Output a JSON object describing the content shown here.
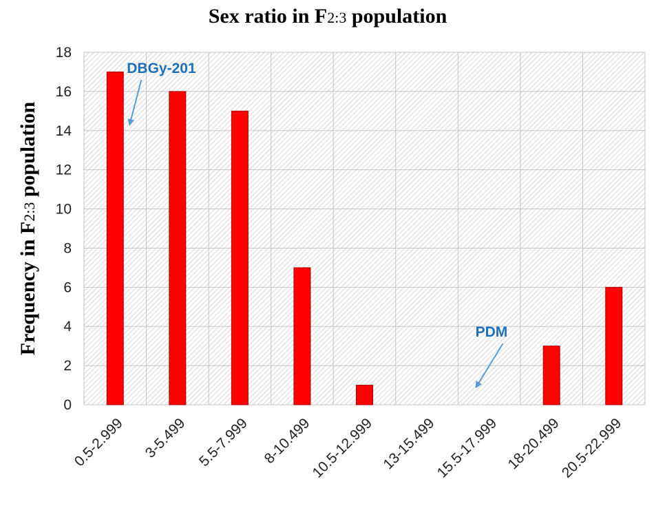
{
  "chart_data": {
    "type": "bar",
    "title_main": "Sex ratio in F",
    "title_sub": "2:3",
    "title_rest": " population",
    "ylabel_main": "Frequency in F",
    "ylabel_sub": "2:3",
    "ylabel_rest": " population",
    "xlabel": "",
    "categories": [
      "0.5-2.999",
      "3-5.499",
      "5.5-7.999",
      "8-10.499",
      "10.5-12.999",
      "13-15.499",
      "15.5-17.999",
      "18-20.499",
      "20.5-22.999"
    ],
    "series": [
      {
        "values": [
          17,
          16,
          15,
          7,
          1,
          0,
          0,
          3,
          6
        ]
      }
    ],
    "ylim": [
      0,
      18
    ],
    "yticks": [
      0,
      2,
      4,
      6,
      8,
      10,
      12,
      14,
      16,
      18
    ],
    "grid": true,
    "bar_color": "#ff0000",
    "bar_border_color": "#b00000",
    "annotations": [
      {
        "text": "DBGy-201",
        "color": "#1f6fb8",
        "category": "0.5-2.999"
      },
      {
        "text": "PDM",
        "color": "#1f6fb8",
        "category": "15.5-17.999"
      }
    ]
  }
}
